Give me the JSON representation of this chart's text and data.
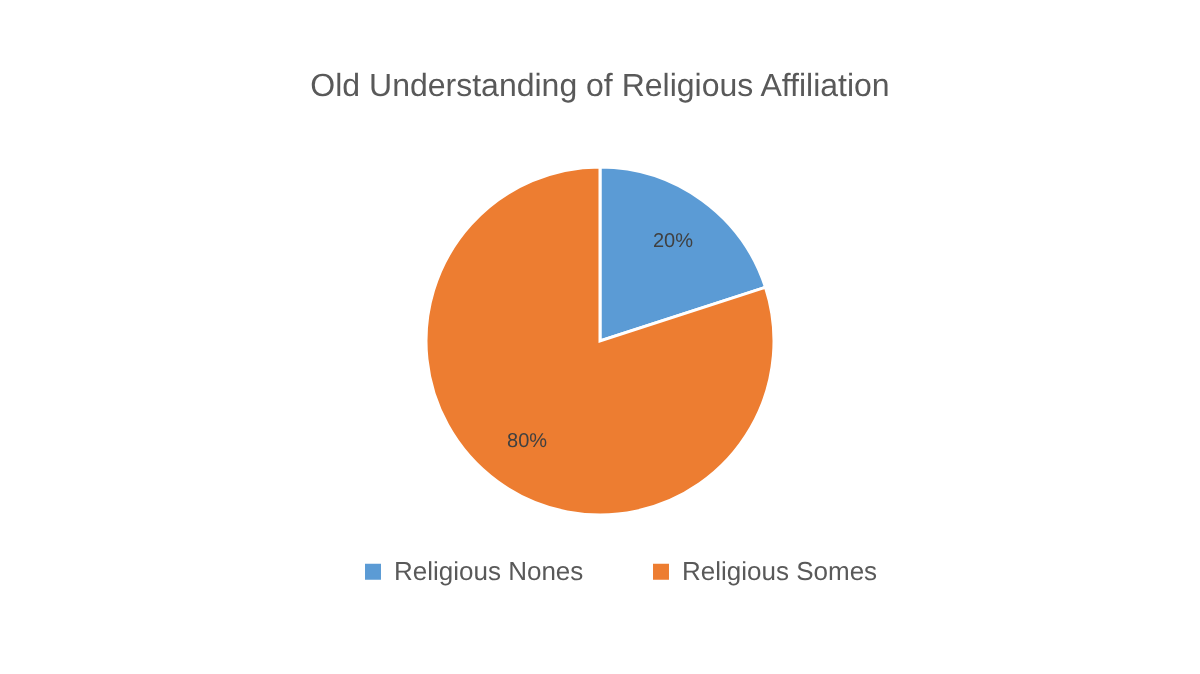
{
  "chart_data": {
    "type": "pie",
    "title": "Old Understanding of Religious Affiliation",
    "categories": [
      "Religious Nones",
      "Religious Somes"
    ],
    "values": [
      20,
      80
    ],
    "colors": [
      "#5b9bd5",
      "#ed7d31"
    ],
    "value_labels": [
      "20%",
      "80%"
    ],
    "legend": "bottom"
  }
}
